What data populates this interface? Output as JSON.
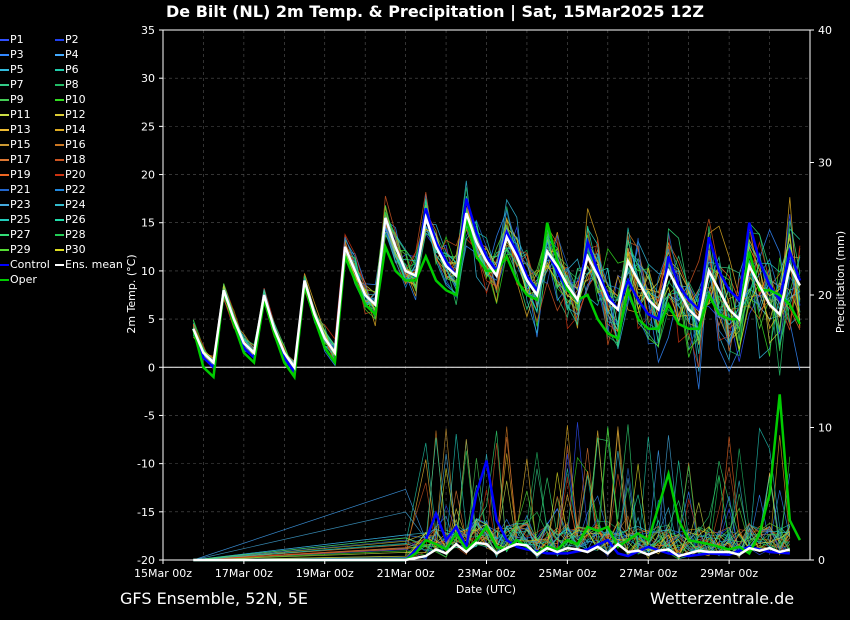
{
  "title": "De Bilt  (NL)  2m Temp. & Precipitation | Sat, 15Mar2025 12Z",
  "footer": {
    "model": "GFS Ensemble, 52N, 5E",
    "site": "Wetterzentrale.de"
  },
  "colors": {
    "control": "#0000ff",
    "oper": "#00cc00",
    "mean": "#ffffff",
    "background": "#000000"
  },
  "legend": [
    {
      "label": "P1",
      "color": "#3050ff"
    },
    {
      "label": "P2",
      "color": "#2040ee"
    },
    {
      "label": "P3",
      "color": "#3388ff"
    },
    {
      "label": "P4",
      "color": "#44aaff"
    },
    {
      "label": "P5",
      "color": "#33bbdd"
    },
    {
      "label": "P6",
      "color": "#22ccaa"
    },
    {
      "label": "P7",
      "color": "#33cc88"
    },
    {
      "label": "P8",
      "color": "#22bb66"
    },
    {
      "label": "P9",
      "color": "#44cc55"
    },
    {
      "label": "P10",
      "color": "#33dd22"
    },
    {
      "label": "P11",
      "color": "#ccdd44"
    },
    {
      "label": "P12",
      "color": "#ddcc33"
    },
    {
      "label": "P13",
      "color": "#eebb33"
    },
    {
      "label": "P14",
      "color": "#ddaa22"
    },
    {
      "label": "P15",
      "color": "#cc9933"
    },
    {
      "label": "P16",
      "color": "#cc7722"
    },
    {
      "label": "P17",
      "color": "#dd7733"
    },
    {
      "label": "P18",
      "color": "#cc5522"
    },
    {
      "label": "P19",
      "color": "#ee6622"
    },
    {
      "label": "P20",
      "color": "#cc3311"
    },
    {
      "label": "P21",
      "color": "#2266cc"
    },
    {
      "label": "P22",
      "color": "#2288dd"
    },
    {
      "label": "P23",
      "color": "#44aadd"
    },
    {
      "label": "P24",
      "color": "#33bbcc"
    },
    {
      "label": "P25",
      "color": "#22ccbb"
    },
    {
      "label": "P26",
      "color": "#22ddaa"
    },
    {
      "label": "P27",
      "color": "#33dd77"
    },
    {
      "label": "P28",
      "color": "#22cc55"
    },
    {
      "label": "P29",
      "color": "#55dd33"
    },
    {
      "label": "P30",
      "color": "#dddd22"
    },
    {
      "label": "Control",
      "color": "#0000ff"
    },
    {
      "label": "Ens. mean",
      "color": "#ffffff"
    },
    {
      "label": "Oper",
      "color": "#00cc00"
    }
  ],
  "chart_data": {
    "type": "line",
    "xlabel": "Date (UTC)",
    "ylabel_left": "2m Temp. (°C)",
    "ylabel_right": "Precipitation (mm)",
    "x_ticks": [
      "15Mar 00z",
      "17Mar 00z",
      "19Mar 00z",
      "21Mar 00z",
      "23Mar 00z",
      "25Mar 00z",
      "27Mar 00z",
      "29Mar 00z"
    ],
    "x_range_days": [
      0,
      16
    ],
    "temp_ylim": [
      -20,
      35
    ],
    "temp_ticks": [
      35,
      30,
      25,
      20,
      15,
      10,
      5,
      0,
      -5,
      -10,
      -15,
      -20
    ],
    "precip_ylim": [
      0,
      40
    ],
    "precip_ticks": [
      40,
      30,
      20,
      10,
      0
    ],
    "grid": true,
    "mean_temp": [
      [
        0.75,
        4
      ],
      [
        1.0,
        1.5
      ],
      [
        1.25,
        0.5
      ],
      [
        1.5,
        8
      ],
      [
        1.75,
        5
      ],
      [
        2.0,
        2.5
      ],
      [
        2.25,
        1.5
      ],
      [
        2.5,
        7.5
      ],
      [
        2.75,
        4
      ],
      [
        3.0,
        1.5
      ],
      [
        3.25,
        0
      ],
      [
        3.5,
        9
      ],
      [
        3.75,
        5.5
      ],
      [
        4.0,
        3
      ],
      [
        4.25,
        1.5
      ],
      [
        4.5,
        12.5
      ],
      [
        4.75,
        10
      ],
      [
        5.0,
        7.5
      ],
      [
        5.25,
        6.5
      ],
      [
        5.5,
        15.5
      ],
      [
        5.75,
        12.5
      ],
      [
        6.0,
        10
      ],
      [
        6.25,
        9.5
      ],
      [
        6.5,
        15.5
      ],
      [
        6.75,
        12.5
      ],
      [
        7.0,
        10.5
      ],
      [
        7.25,
        9.5
      ],
      [
        7.5,
        16
      ],
      [
        7.75,
        13
      ],
      [
        8.0,
        11
      ],
      [
        8.25,
        9.5
      ],
      [
        8.5,
        13.5
      ],
      [
        8.75,
        11.5
      ],
      [
        9.0,
        9
      ],
      [
        9.25,
        7.5
      ],
      [
        9.5,
        12
      ],
      [
        9.75,
        10.5
      ],
      [
        10.0,
        8.5
      ],
      [
        10.25,
        7
      ],
      [
        10.5,
        11.5
      ],
      [
        10.75,
        9.5
      ],
      [
        11.0,
        7
      ],
      [
        11.25,
        6
      ],
      [
        11.5,
        11
      ],
      [
        11.75,
        9
      ],
      [
        12.0,
        7
      ],
      [
        12.25,
        6
      ],
      [
        12.5,
        10
      ],
      [
        12.75,
        8
      ],
      [
        13.0,
        6
      ],
      [
        13.25,
        5
      ],
      [
        13.5,
        10
      ],
      [
        13.75,
        8
      ],
      [
        14.0,
        6
      ],
      [
        14.25,
        5
      ],
      [
        14.5,
        10.5
      ],
      [
        14.75,
        8.5
      ],
      [
        15.0,
        6.5
      ],
      [
        15.25,
        5.5
      ],
      [
        15.5,
        10.5
      ],
      [
        15.75,
        8.5
      ]
    ],
    "control_temp": [
      [
        0.75,
        4
      ],
      [
        1.0,
        1
      ],
      [
        1.25,
        0
      ],
      [
        1.5,
        8
      ],
      [
        1.75,
        5
      ],
      [
        2.0,
        2
      ],
      [
        2.25,
        1
      ],
      [
        2.5,
        7.5
      ],
      [
        2.75,
        4
      ],
      [
        3.0,
        1
      ],
      [
        3.25,
        -0.5
      ],
      [
        3.5,
        9
      ],
      [
        3.75,
        5.5
      ],
      [
        4.0,
        3
      ],
      [
        4.25,
        1.5
      ],
      [
        4.5,
        12.5
      ],
      [
        4.75,
        10
      ],
      [
        5.0,
        7.5
      ],
      [
        5.25,
        6.5
      ],
      [
        5.5,
        15.5
      ],
      [
        5.75,
        12.5
      ],
      [
        6.0,
        10
      ],
      [
        6.25,
        9.5
      ],
      [
        6.5,
        16.5
      ],
      [
        6.75,
        13
      ],
      [
        7.0,
        11
      ],
      [
        7.25,
        9.5
      ],
      [
        7.5,
        17.5
      ],
      [
        7.75,
        14
      ],
      [
        8.0,
        11.5
      ],
      [
        8.25,
        10
      ],
      [
        8.5,
        14
      ],
      [
        8.75,
        12
      ],
      [
        9.0,
        9.5
      ],
      [
        9.25,
        8
      ],
      [
        9.5,
        12
      ],
      [
        9.75,
        10
      ],
      [
        10.0,
        8
      ],
      [
        10.25,
        7
      ],
      [
        10.5,
        13
      ],
      [
        10.75,
        10
      ],
      [
        11.0,
        7.5
      ],
      [
        11.25,
        6
      ],
      [
        11.5,
        9
      ],
      [
        11.75,
        7
      ],
      [
        12.0,
        5.5
      ],
      [
        12.25,
        5
      ],
      [
        12.5,
        11.5
      ],
      [
        12.75,
        8.5
      ],
      [
        13.0,
        7
      ],
      [
        13.25,
        6
      ],
      [
        13.5,
        13.5
      ],
      [
        13.75,
        10
      ],
      [
        14.0,
        8
      ],
      [
        14.25,
        7
      ],
      [
        14.5,
        15
      ],
      [
        14.75,
        11
      ],
      [
        15.0,
        8.5
      ],
      [
        15.25,
        7
      ],
      [
        15.5,
        12
      ],
      [
        15.75,
        9
      ]
    ],
    "oper_temp": [
      [
        0.75,
        4
      ],
      [
        1.0,
        0
      ],
      [
        1.25,
        -1
      ],
      [
        1.5,
        8
      ],
      [
        1.75,
        4.5
      ],
      [
        2.0,
        1.5
      ],
      [
        2.25,
        0.5
      ],
      [
        2.5,
        7
      ],
      [
        2.75,
        3.5
      ],
      [
        3.0,
        0.5
      ],
      [
        3.25,
        -1
      ],
      [
        3.5,
        8.5
      ],
      [
        3.75,
        5
      ],
      [
        4.0,
        2
      ],
      [
        4.25,
        0.5
      ],
      [
        4.5,
        11.5
      ],
      [
        4.75,
        9
      ],
      [
        5.0,
        6.5
      ],
      [
        5.25,
        5.5
      ],
      [
        5.5,
        12.5
      ],
      [
        5.75,
        10
      ],
      [
        6.0,
        9
      ],
      [
        6.25,
        9
      ],
      [
        6.5,
        11.5
      ],
      [
        6.75,
        9
      ],
      [
        7.0,
        8
      ],
      [
        7.25,
        7.5
      ],
      [
        7.5,
        15.5
      ],
      [
        7.75,
        11.5
      ],
      [
        8.0,
        10
      ],
      [
        8.25,
        10
      ],
      [
        8.5,
        11.5
      ],
      [
        8.75,
        9
      ],
      [
        9.0,
        7.5
      ],
      [
        9.25,
        7
      ],
      [
        9.5,
        15
      ],
      [
        9.75,
        11
      ],
      [
        10.0,
        8
      ],
      [
        10.25,
        7
      ],
      [
        10.5,
        7.5
      ],
      [
        10.75,
        5
      ],
      [
        11.0,
        3.5
      ],
      [
        11.25,
        3
      ],
      [
        11.5,
        8
      ],
      [
        11.75,
        5
      ],
      [
        12.0,
        4
      ],
      [
        12.25,
        4
      ],
      [
        12.5,
        6.5
      ],
      [
        12.75,
        4.5
      ],
      [
        13.0,
        4
      ],
      [
        13.25,
        4
      ],
      [
        13.5,
        7.5
      ],
      [
        13.75,
        5.5
      ],
      [
        14.0,
        5
      ],
      [
        14.25,
        5
      ],
      [
        14.5,
        12
      ],
      [
        14.75,
        8
      ],
      [
        15.0,
        8
      ],
      [
        15.25,
        7.5
      ],
      [
        15.5,
        6.5
      ],
      [
        15.75,
        4.5
      ]
    ],
    "mean_precip": [
      [
        0.75,
        0
      ],
      [
        6.0,
        0
      ],
      [
        6.5,
        0.3
      ],
      [
        6.75,
        0.8
      ],
      [
        7.0,
        0.5
      ],
      [
        7.25,
        1.2
      ],
      [
        7.5,
        0.6
      ],
      [
        7.75,
        1.3
      ],
      [
        8.0,
        1.2
      ],
      [
        8.25,
        0.5
      ],
      [
        8.5,
        0.9
      ],
      [
        8.75,
        1.2
      ],
      [
        9.0,
        1.1
      ],
      [
        9.25,
        0.4
      ],
      [
        9.5,
        0.9
      ],
      [
        9.75,
        0.6
      ],
      [
        10.0,
        0.9
      ],
      [
        10.25,
        0.8
      ],
      [
        10.5,
        0.6
      ],
      [
        10.75,
        1.0
      ],
      [
        11.0,
        0.5
      ],
      [
        11.25,
        1.2
      ],
      [
        11.5,
        0.6
      ],
      [
        11.75,
        0.7
      ],
      [
        12.0,
        0.4
      ],
      [
        12.25,
        0.7
      ],
      [
        12.5,
        0.8
      ],
      [
        12.75,
        0.3
      ],
      [
        13.0,
        0.5
      ],
      [
        13.25,
        0.7
      ],
      [
        13.5,
        0.6
      ],
      [
        13.75,
        0.6
      ],
      [
        14.0,
        0.6
      ],
      [
        14.25,
        0.4
      ],
      [
        14.5,
        0.9
      ],
      [
        14.75,
        0.7
      ],
      [
        15.0,
        0.9
      ],
      [
        15.25,
        0.6
      ],
      [
        15.5,
        0.8
      ]
    ],
    "control_precip": [
      [
        0.75,
        0
      ],
      [
        6.0,
        0
      ],
      [
        6.5,
        1.5
      ],
      [
        6.75,
        3.5
      ],
      [
        7.0,
        1.5
      ],
      [
        7.25,
        2.5
      ],
      [
        7.5,
        1
      ],
      [
        7.75,
        5
      ],
      [
        8.0,
        7.5
      ],
      [
        8.25,
        3
      ],
      [
        8.5,
        1.5
      ],
      [
        8.75,
        1
      ],
      [
        9.0,
        0.8
      ],
      [
        9.5,
        0.5
      ],
      [
        10.0,
        0.5
      ],
      [
        10.5,
        0.8
      ],
      [
        11.0,
        1.5
      ],
      [
        11.25,
        0.5
      ],
      [
        11.5,
        0.3
      ],
      [
        12.0,
        1
      ],
      [
        12.5,
        0.5
      ],
      [
        13.0,
        0.3
      ],
      [
        13.5,
        0.5
      ],
      [
        14.0,
        0.4
      ],
      [
        14.5,
        1
      ],
      [
        15.0,
        0.6
      ],
      [
        15.5,
        0.5
      ]
    ],
    "oper_precip": [
      [
        0.75,
        0
      ],
      [
        6.0,
        0
      ],
      [
        6.25,
        0.5
      ],
      [
        6.5,
        1.5
      ],
      [
        6.75,
        1.2
      ],
      [
        7.0,
        0.8
      ],
      [
        7.25,
        2
      ],
      [
        7.5,
        0.8
      ],
      [
        7.75,
        1.5
      ],
      [
        8.0,
        2.5
      ],
      [
        8.25,
        1
      ],
      [
        8.5,
        0.8
      ],
      [
        8.75,
        1.5
      ],
      [
        9.0,
        1
      ],
      [
        9.25,
        0.5
      ],
      [
        9.5,
        1
      ],
      [
        9.75,
        0.8
      ],
      [
        10.0,
        1.5
      ],
      [
        10.25,
        1.2
      ],
      [
        10.5,
        2.5
      ],
      [
        10.75,
        2.2
      ],
      [
        11.0,
        2.5
      ],
      [
        11.25,
        1
      ],
      [
        11.5,
        1.5
      ],
      [
        11.75,
        2
      ],
      [
        12.0,
        1.5
      ],
      [
        12.25,
        4
      ],
      [
        12.5,
        6.5
      ],
      [
        12.75,
        3
      ],
      [
        13.0,
        1.5
      ],
      [
        13.5,
        1.2
      ],
      [
        14.0,
        0.8
      ],
      [
        14.25,
        1
      ],
      [
        14.5,
        0.5
      ],
      [
        14.75,
        2
      ],
      [
        15.0,
        5
      ],
      [
        15.25,
        12.5
      ],
      [
        15.5,
        3
      ],
      [
        15.75,
        1.5
      ]
    ]
  }
}
